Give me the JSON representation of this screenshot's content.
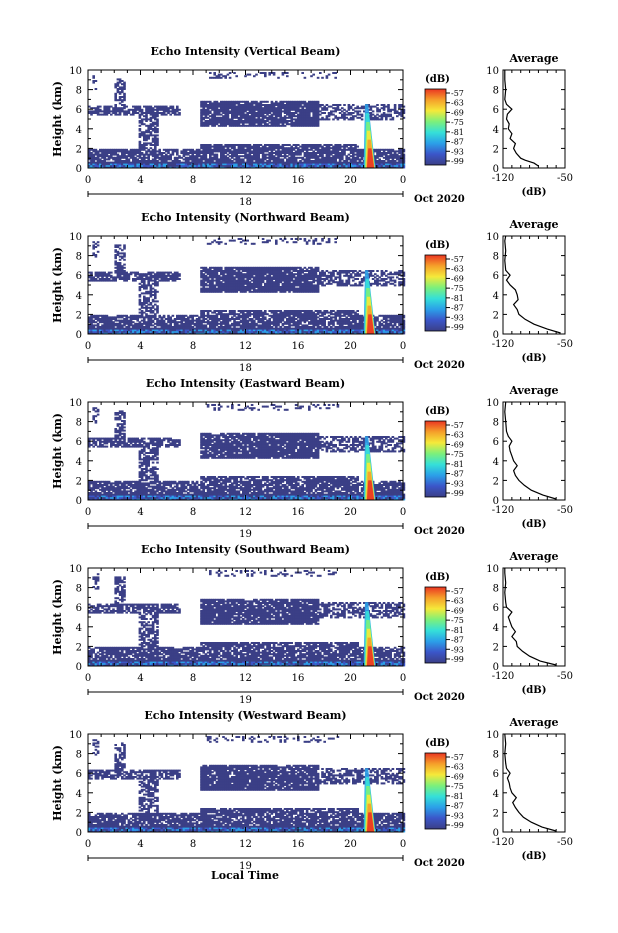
{
  "chart_data": {
    "type": "heatmap",
    "panels": [
      {
        "title": "Echo Intensity (Vertical Beam)",
        "ylabel": "Height (km)",
        "ylim": [
          0,
          10
        ],
        "xlim": [
          0,
          24
        ],
        "xtick_labels": [
          "0",
          "4",
          "8",
          "12",
          "16",
          "20",
          "0"
        ],
        "date_label": "18",
        "month_label": "Oct 2020",
        "colorbar_unit": "(dB)",
        "colorbar_ticks": [
          "-57",
          "-63",
          "-69",
          "-75",
          "-81",
          "-87",
          "-93",
          "-99"
        ],
        "avg_title": "Average",
        "avg_xlabel": "(dB)",
        "avg_xtick_labels": [
          "-120",
          "-50"
        ],
        "avg_xlim": [
          -120,
          -50
        ],
        "avg_profile": [
          [
            -80,
            0.2
          ],
          [
            -85,
            0.5
          ],
          [
            -95,
            0.8
          ],
          [
            -100,
            1.0
          ],
          [
            -105,
            1.5
          ],
          [
            -108,
            2.0
          ],
          [
            -106,
            2.5
          ],
          [
            -112,
            3.0
          ],
          [
            -110,
            3.5
          ],
          [
            -114,
            4.0
          ],
          [
            -113,
            4.5
          ],
          [
            -116,
            5.0
          ],
          [
            -115,
            5.5
          ],
          [
            -110,
            6.0
          ],
          [
            -116,
            6.5
          ],
          [
            -118,
            7.0
          ],
          [
            -117,
            8.0
          ],
          [
            -118,
            9.0
          ],
          [
            -118,
            10.0
          ]
        ]
      },
      {
        "title": "Echo Intensity (Northward Beam)",
        "ylabel": "Height (km)",
        "ylim": [
          0,
          10
        ],
        "xlim": [
          0,
          24
        ],
        "xtick_labels": [
          "0",
          "4",
          "8",
          "12",
          "16",
          "20",
          "0"
        ],
        "date_label": "18",
        "month_label": "Oct 2020",
        "colorbar_unit": "(dB)",
        "colorbar_ticks": [
          "-57",
          "-63",
          "-69",
          "-75",
          "-81",
          "-87",
          "-93",
          "-99"
        ],
        "avg_title": "Average",
        "avg_xlabel": "(dB)",
        "avg_xtick_labels": [
          "-120",
          "-50"
        ],
        "avg_xlim": [
          -120,
          -50
        ],
        "avg_profile": [
          [
            -55,
            0.1
          ],
          [
            -70,
            0.5
          ],
          [
            -85,
            1.0
          ],
          [
            -95,
            1.5
          ],
          [
            -102,
            2.0
          ],
          [
            -104,
            2.5
          ],
          [
            -108,
            3.0
          ],
          [
            -103,
            3.5
          ],
          [
            -104,
            4.0
          ],
          [
            -106,
            4.5
          ],
          [
            -112,
            5.0
          ],
          [
            -116,
            5.5
          ],
          [
            -112,
            6.0
          ],
          [
            -117,
            6.5
          ],
          [
            -118,
            7.5
          ],
          [
            -117,
            8.5
          ],
          [
            -118,
            9.5
          ],
          [
            -117,
            10.0
          ]
        ]
      },
      {
        "title": "Echo Intensity (Eastward Beam)",
        "ylabel": "Height (km)",
        "ylim": [
          0,
          10
        ],
        "xlim": [
          0,
          24
        ],
        "xtick_labels": [
          "0",
          "4",
          "8",
          "12",
          "16",
          "20",
          "0"
        ],
        "date_label": "19",
        "month_label": "Oct 2020",
        "colorbar_unit": "(dB)",
        "colorbar_ticks": [
          "-57",
          "-63",
          "-69",
          "-75",
          "-81",
          "-87",
          "-93",
          "-99"
        ],
        "avg_title": "Average",
        "avg_xlabel": "(dB)",
        "avg_xtick_labels": [
          "-120",
          "-50"
        ],
        "avg_xlim": [
          -120,
          -50
        ],
        "avg_profile": [
          [
            -60,
            0.1
          ],
          [
            -75,
            0.5
          ],
          [
            -88,
            1.0
          ],
          [
            -96,
            1.5
          ],
          [
            -102,
            2.0
          ],
          [
            -106,
            2.5
          ],
          [
            -108,
            3.0
          ],
          [
            -104,
            3.5
          ],
          [
            -108,
            4.0
          ],
          [
            -110,
            4.5
          ],
          [
            -112,
            5.0
          ],
          [
            -113,
            5.5
          ],
          [
            -110,
            6.0
          ],
          [
            -114,
            6.5
          ],
          [
            -116,
            7.0
          ],
          [
            -117,
            8.0
          ],
          [
            -118,
            9.0
          ],
          [
            -117,
            10.0
          ]
        ]
      },
      {
        "title": "Echo Intensity (Southward Beam)",
        "ylabel": "Height (km)",
        "ylim": [
          0,
          10
        ],
        "xlim": [
          0,
          24
        ],
        "xtick_labels": [
          "0",
          "4",
          "8",
          "12",
          "16",
          "20",
          "0"
        ],
        "date_label": "19",
        "month_label": "Oct 2020",
        "colorbar_unit": "(dB)",
        "colorbar_ticks": [
          "-57",
          "-63",
          "-69",
          "-75",
          "-81",
          "-87",
          "-93",
          "-99"
        ],
        "avg_title": "Average",
        "avg_xlabel": "(dB)",
        "avg_xtick_labels": [
          "-120",
          "-50"
        ],
        "avg_xlim": [
          -120,
          -50
        ],
        "avg_profile": [
          [
            -60,
            0.1
          ],
          [
            -78,
            0.5
          ],
          [
            -90,
            1.0
          ],
          [
            -98,
            1.5
          ],
          [
            -104,
            2.0
          ],
          [
            -105,
            2.5
          ],
          [
            -110,
            3.0
          ],
          [
            -106,
            3.5
          ],
          [
            -110,
            4.0
          ],
          [
            -112,
            4.5
          ],
          [
            -114,
            5.0
          ],
          [
            -110,
            5.5
          ],
          [
            -116,
            6.0
          ],
          [
            -117,
            6.5
          ],
          [
            -118,
            7.5
          ],
          [
            -117,
            8.5
          ],
          [
            -118,
            9.5
          ],
          [
            -118,
            10.0
          ]
        ]
      },
      {
        "title": "Echo Intensity (Westward Beam)",
        "ylabel": "Height (km)",
        "ylim": [
          0,
          10
        ],
        "xlim": [
          0,
          24
        ],
        "xtick_labels": [
          "0",
          "4",
          "8",
          "12",
          "16",
          "20",
          "0"
        ],
        "date_label": "19",
        "month_label": "Oct 2020",
        "colorbar_unit": "(dB)",
        "colorbar_ticks": [
          "-57",
          "-63",
          "-69",
          "-75",
          "-81",
          "-87",
          "-93",
          "-99"
        ],
        "avg_title": "Average",
        "avg_xlabel": "(dB)",
        "avg_xtick_labels": [
          "-120",
          "-50"
        ],
        "avg_xlim": [
          -120,
          -50
        ],
        "avg_profile": [
          [
            -60,
            0.1
          ],
          [
            -76,
            0.5
          ],
          [
            -88,
            1.0
          ],
          [
            -97,
            1.5
          ],
          [
            -102,
            2.0
          ],
          [
            -106,
            2.5
          ],
          [
            -109,
            3.0
          ],
          [
            -105,
            3.5
          ],
          [
            -110,
            4.0
          ],
          [
            -112,
            4.5
          ],
          [
            -113,
            5.0
          ],
          [
            -115,
            5.5
          ],
          [
            -112,
            6.0
          ],
          [
            -116,
            6.5
          ],
          [
            -117,
            7.0
          ],
          [
            -118,
            8.0
          ],
          [
            -117,
            9.0
          ],
          [
            -118,
            10.0
          ]
        ]
      }
    ],
    "xlabel": "Local Time",
    "colors": {
      "heatmap_low": "#3b3f86",
      "white": "#ffffff",
      "colorbar_stops": [
        "#3b3f86",
        "#3b56c9",
        "#2ba0e8",
        "#35e0d8",
        "#7df07a",
        "#f5e93a",
        "#f5a02a",
        "#ea3522"
      ]
    }
  }
}
